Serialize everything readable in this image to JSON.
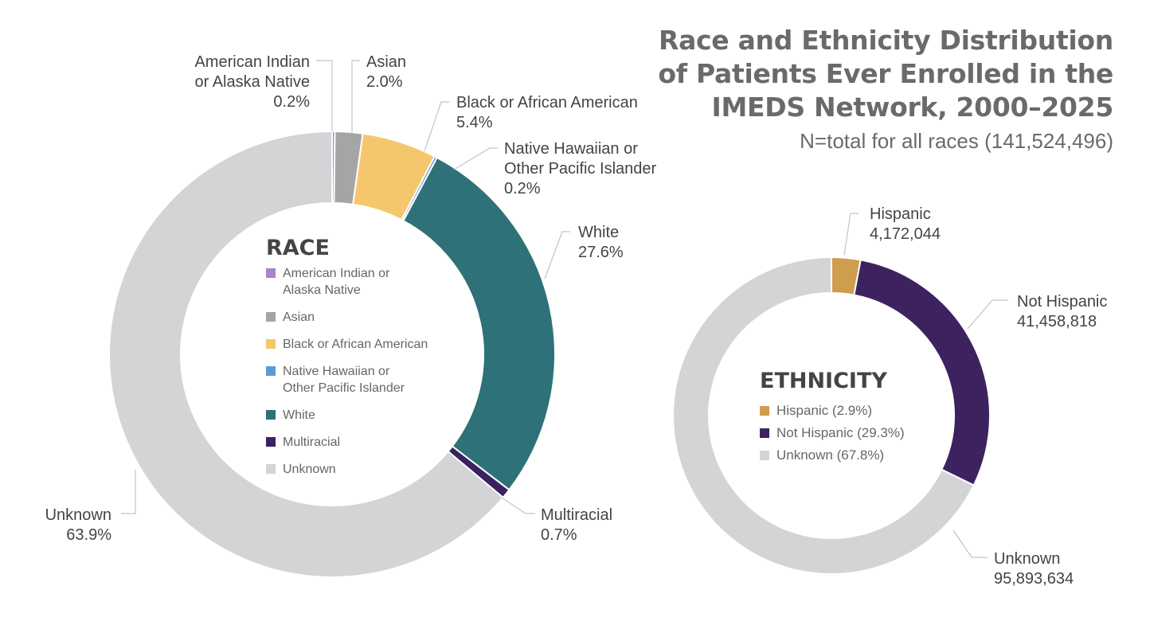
{
  "header": {
    "title_lines": [
      "Race and Ethnicity Distribution",
      "of Patients Ever Enrolled in the",
      "IMEDS Network, 2000–2025"
    ],
    "subtitle": "N=total for all races (141,524,496)"
  },
  "chart_data": [
    {
      "type": "pie",
      "title": "RACE",
      "donut": true,
      "slices": [
        {
          "name": "American Indian or Alaska Native",
          "value": 0.2,
          "label": "0.2%",
          "legend": "American Indian or Alaska Native",
          "color": "#a884c8"
        },
        {
          "name": "Asian",
          "value": 2.0,
          "label": "2.0%",
          "legend": "Asian",
          "color": "#a5a5a5"
        },
        {
          "name": "Black or African American",
          "value": 5.4,
          "label": "5.4%",
          "legend": "Black or African American",
          "color": "#f5c76c"
        },
        {
          "name": "Native Hawaiian or Other Pacific Islander",
          "value": 0.2,
          "label": "0.2%",
          "legend": "Native Hawaiian or Other Pacific Islander",
          "color": "#5b9bd5"
        },
        {
          "name": "White",
          "value": 27.6,
          "label": "27.6%",
          "legend": "White",
          "color": "#2e7178"
        },
        {
          "name": "Multiracial",
          "value": 0.7,
          "label": "0.7%",
          "legend": "Multiracial",
          "color": "#3a2160"
        },
        {
          "name": "Unknown",
          "value": 63.9,
          "label": "63.9%",
          "legend": "Unknown",
          "color": "#d3d4d6"
        }
      ]
    },
    {
      "type": "pie",
      "title": "ETHNICITY",
      "donut": true,
      "slices": [
        {
          "name": "Hispanic",
          "value": 4172044,
          "label": "4,172,044",
          "legend": "Hispanic (2.9%)",
          "color": "#cf9d4e"
        },
        {
          "name": "Not Hispanic",
          "value": 41458818,
          "label": "41,458,818",
          "legend": "Not Hispanic (29.3%)",
          "color": "#3d2260"
        },
        {
          "name": "Unknown",
          "value": 95893634,
          "label": "95,893,634",
          "legend": "Unknown (67.8%)",
          "color": "#d3d4d6"
        }
      ]
    }
  ]
}
